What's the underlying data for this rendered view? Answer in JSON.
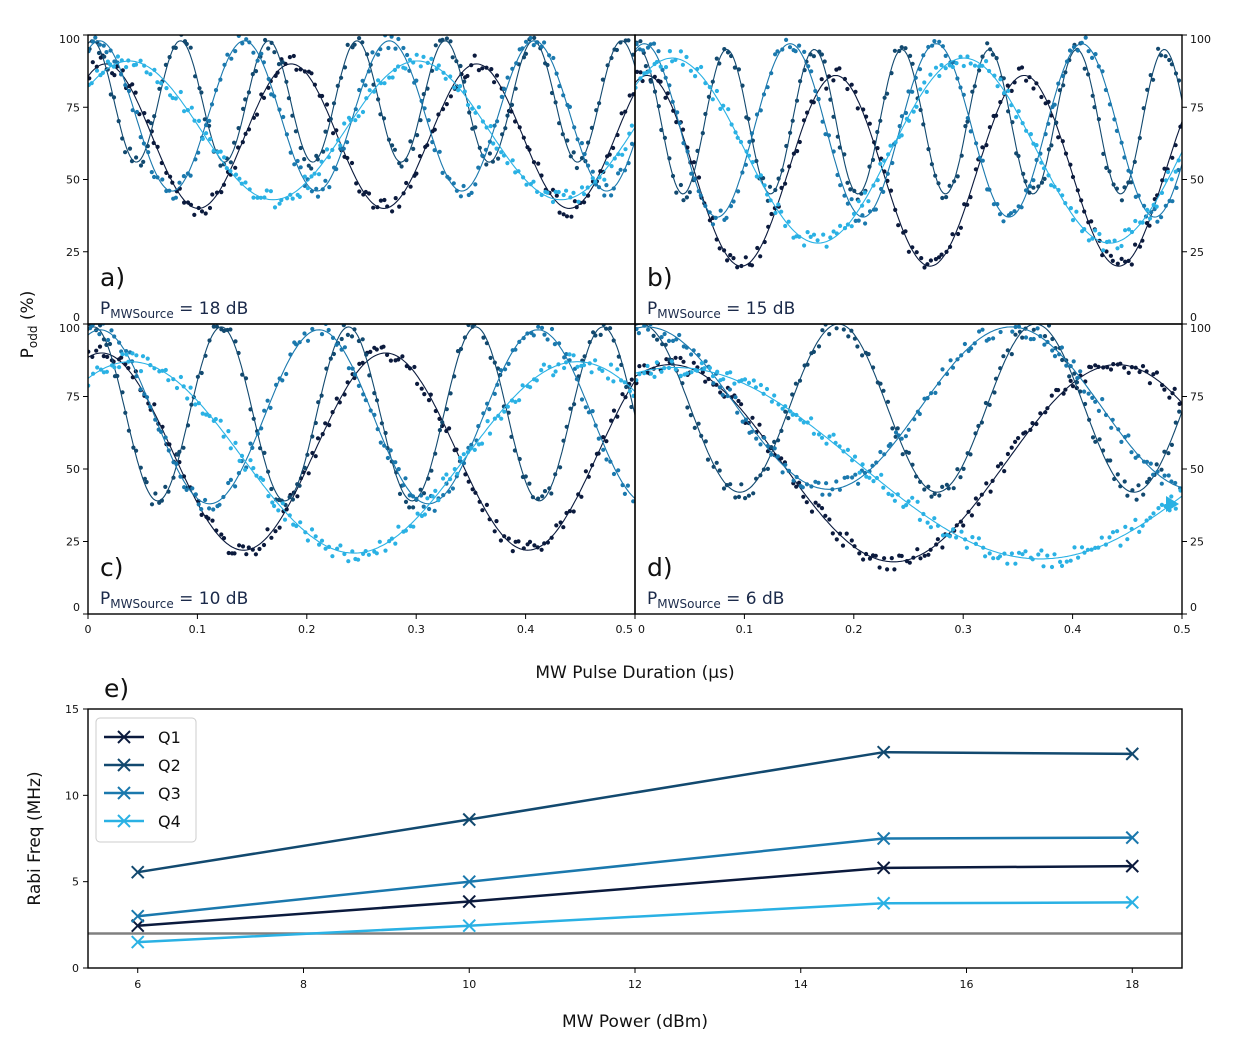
{
  "chart_data": [
    {
      "type": "scatter",
      "panels": [
        {
          "id": "a",
          "label": "a)",
          "power_prefix": "P",
          "power_sub": "MWSource",
          "power_value": " = 18 dB",
          "power_db": 18,
          "fits": [
            {
              "name": "Q1",
              "freq": 5.9,
              "mean": 65,
              "amp": 25,
              "phase": 0.6
            },
            {
              "name": "Q2",
              "freq": 12.4,
              "mean": 77,
              "amp": 21,
              "phase": 0.3
            },
            {
              "name": "Q3",
              "freq": 7.55,
              "mean": 72,
              "amp": 26,
              "phase": 0.5
            },
            {
              "name": "Q4",
              "freq": 3.8,
              "mean": 67,
              "amp": 24,
              "phase": 0.9
            }
          ]
        },
        {
          "id": "b",
          "label": "b)",
          "power_prefix": "P",
          "power_sub": "MWSource",
          "power_value": " = 15 dB",
          "power_db": 15,
          "fits": [
            {
              "name": "Q1",
              "freq": 5.8,
              "mean": 53,
              "amp": 33,
              "phase": 0.4
            },
            {
              "name": "Q2",
              "freq": 12.5,
              "mean": 70,
              "amp": 25,
              "phase": 0.3
            },
            {
              "name": "Q3",
              "freq": 7.5,
              "mean": 67,
              "amp": 30,
              "phase": 0.4
            },
            {
              "name": "Q4",
              "freq": 3.75,
              "mean": 60,
              "amp": 32,
              "phase": 0.8
            }
          ]
        },
        {
          "id": "c",
          "label": "c)",
          "power_prefix": "P",
          "power_sub": "MWSource",
          "power_value": " = 10 dB",
          "power_db": 10,
          "fits": [
            {
              "name": "Q1",
              "freq": 3.85,
              "mean": 56,
              "amp": 34,
              "phase": 0.3
            },
            {
              "name": "Q2",
              "freq": 8.6,
              "mean": 69,
              "amp": 30,
              "phase": 0.3
            },
            {
              "name": "Q3",
              "freq": 5.0,
              "mean": 68,
              "amp": 30,
              "phase": 0.35
            },
            {
              "name": "Q4",
              "freq": 2.45,
              "mean": 54,
              "amp": 33,
              "phase": 0.6
            }
          ]
        },
        {
          "id": "d",
          "label": "d)",
          "power_prefix": "P",
          "power_sub": "MWSource",
          "power_value": " = 6 dB",
          "power_db": 6,
          "fits": [
            {
              "name": "Q1",
              "freq": 2.45,
              "mean": 52,
              "amp": 34,
              "phase": 0.5
            },
            {
              "name": "Q2",
              "freq": 5.55,
              "mean": 71,
              "amp": 29,
              "phase": 0.2
            },
            {
              "name": "Q3",
              "freq": 3.0,
              "mean": 71,
              "amp": 28,
              "phase": 0.2
            },
            {
              "name": "Q4",
              "freq": 1.5,
              "mean": 52,
              "amp": 33,
              "phase": 0.35
            }
          ]
        }
      ],
      "x_range": [
        0,
        0.5
      ],
      "y_range": [
        0,
        100
      ],
      "x_ticks": [
        "0",
        "0.1",
        "0.2",
        "0.3",
        "0.4",
        "0.5"
      ],
      "y_ticks": [
        "0",
        "25",
        "50",
        "75",
        "100"
      ],
      "xlabel": "MW Pulse Duration (μs)",
      "ylabel_main": "P",
      "ylabel_sub": "odd",
      "ylabel_unit": " (%)"
    },
    {
      "type": "line",
      "label": "e)",
      "xlabel": "MW Power (dBm)",
      "ylabel": "Rabi Freq (MHz)",
      "x": [
        6,
        10,
        15,
        18
      ],
      "xlim": [
        5.4,
        18.6
      ],
      "ylim": [
        0,
        15
      ],
      "x_ticks": [
        "6",
        "8",
        "10",
        "12",
        "14",
        "16",
        "18"
      ],
      "y_ticks": [
        "0",
        "5",
        "10",
        "15"
      ],
      "series": [
        {
          "name": "Q1",
          "values": [
            2.45,
            3.85,
            5.8,
            5.9
          ]
        },
        {
          "name": "Q2",
          "values": [
            5.55,
            8.6,
            12.5,
            12.4
          ]
        },
        {
          "name": "Q3",
          "values": [
            3.0,
            5.0,
            7.5,
            7.55
          ]
        },
        {
          "name": "Q4",
          "values": [
            1.5,
            2.45,
            3.75,
            3.8
          ]
        }
      ],
      "reference_line": 2.0,
      "legend_position": "top-left"
    }
  ],
  "colors": {
    "Q1": "#0b1a3d",
    "Q2": "#12496f",
    "Q3": "#1a78ad",
    "Q4": "#2ab1e4",
    "reference": "#808080",
    "marker": "#2ab1e4"
  }
}
